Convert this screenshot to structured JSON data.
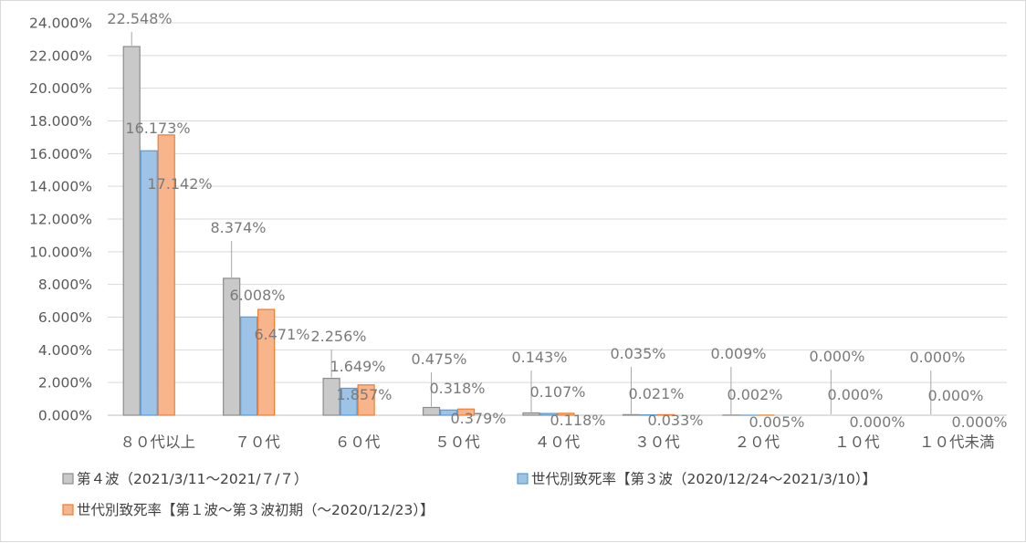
{
  "chart_data": {
    "type": "bar",
    "categories": [
      "８０代以上",
      "７０代",
      "６０代",
      "５０代",
      "４０代",
      "３０代",
      "２０代",
      "１０代",
      "１０代未満"
    ],
    "series": [
      {
        "name": "第４波（2021/3/11～2021/７/７）",
        "values": [
          22.548,
          8.374,
          2.256,
          0.475,
          0.143,
          0.035,
          0.009,
          0.0,
          0.0
        ],
        "labels": [
          "22.548%",
          "8.374%",
          "2.256%",
          "0.475%",
          "0.143%",
          "0.035%",
          "0.009%",
          "0.000%",
          "0.000%"
        ],
        "color": "#c9c9c9",
        "border": "#8c8c8c"
      },
      {
        "name": "世代別致死率【第３波（2020/12/24～2021/3/10）】",
        "values": [
          16.173,
          6.008,
          1.649,
          0.318,
          0.107,
          0.021,
          0.002,
          0.0,
          0.0
        ],
        "labels": [
          "16.173%",
          "6.008%",
          "1.649%",
          "0.318%",
          "0.107%",
          "0.021%",
          "0.002%",
          "0.000%",
          "0.000%"
        ],
        "color": "#9dc3e6",
        "border": "#5b9bd5"
      },
      {
        "name": "世代別致死率【第１波～第３波初期（～2020/12/23）】",
        "values": [
          17.142,
          6.471,
          1.857,
          0.379,
          0.118,
          0.033,
          0.005,
          0.0,
          0.0
        ],
        "labels": [
          "17.142%",
          "6.471%",
          "1.857%",
          "0.379%",
          "0.118%",
          "0.033%",
          "0.005%",
          "0.000%",
          "0.000%"
        ],
        "color": "#f8b58c",
        "border": "#ed7d31"
      }
    ],
    "ylim": [
      0,
      24
    ],
    "yticks": [
      "0.000%",
      "2.000%",
      "4.000%",
      "6.000%",
      "8.000%",
      "10.000%",
      "12.000%",
      "14.000%",
      "16.000%",
      "18.000%",
      "20.000%",
      "22.000%",
      "24.000%"
    ],
    "grid": true,
    "legend_position": "bottom",
    "title": "",
    "xlabel": "",
    "ylabel": ""
  }
}
